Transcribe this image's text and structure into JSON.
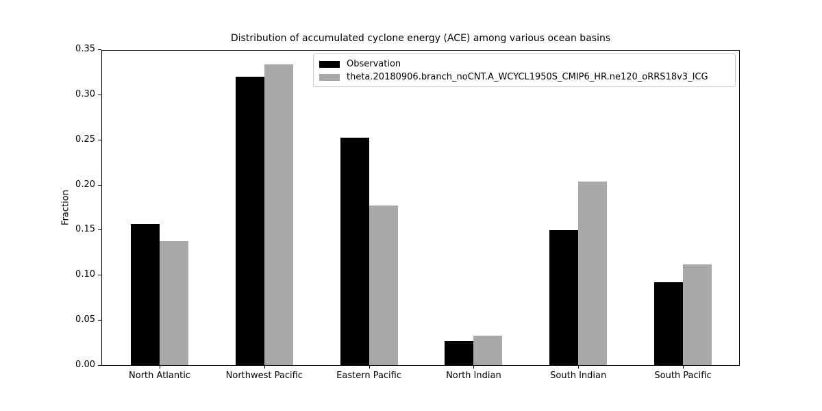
{
  "figure": {
    "background": "#ffffff",
    "frame_color": "#000000",
    "legend_border_color": "#cccccc"
  },
  "chart_data": {
    "type": "bar",
    "title": "Distribution of accumulated cyclone energy (ACE) among various ocean basins",
    "xlabel": "",
    "ylabel": "Fraction",
    "categories": [
      "North Atlantic",
      "Northwest Pacific",
      "Eastern Pacific",
      "North Indian",
      "South Indian",
      "South Pacific"
    ],
    "series": [
      {
        "name": "Observation",
        "color": "#000000",
        "values": [
          0.157,
          0.321,
          0.253,
          0.027,
          0.15,
          0.092
        ]
      },
      {
        "name": "theta.20180906.branch_noCNT.A_WCYCL1950S_CMIP6_HR.ne120_oRRS18v3_ICG",
        "color": "#a9a9a9",
        "values": [
          0.138,
          0.335,
          0.178,
          0.033,
          0.204,
          0.112
        ]
      }
    ],
    "ylim": [
      0,
      0.35
    ],
    "ytick_labels": [
      "0.00",
      "0.05",
      "0.10",
      "0.15",
      "0.20",
      "0.25",
      "0.30",
      "0.35"
    ],
    "grid": false,
    "legend_position": "upper right"
  }
}
